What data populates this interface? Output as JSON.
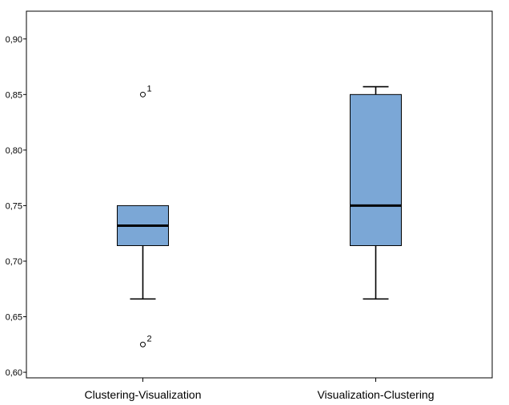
{
  "chart_data": {
    "type": "boxplot",
    "title": "",
    "xlabel": "",
    "ylabel": "",
    "ylim": [
      0.595,
      0.925
    ],
    "yticks": [
      0.6,
      0.65,
      0.7,
      0.75,
      0.8,
      0.85,
      0.9
    ],
    "ytick_labels": [
      "0,60",
      "0,65",
      "0,70",
      "0,75",
      "0,80",
      "0,85",
      "0,90"
    ],
    "grid": false,
    "categories": [
      "Clustering-Visualization",
      "Visualization-Clustering"
    ],
    "box_color": "#7ba7d6",
    "box_edge_color": "#000000",
    "boxes": [
      {
        "category": "Clustering-Visualization",
        "whisker_low": 0.666,
        "q1": 0.714,
        "median": 0.732,
        "q3": 0.75,
        "whisker_high": 0.75,
        "outliers": [
          {
            "value": 0.85,
            "label": "1"
          },
          {
            "value": 0.625,
            "label": "2"
          }
        ]
      },
      {
        "category": "Visualization-Clustering",
        "whisker_low": 0.666,
        "q1": 0.714,
        "median": 0.75,
        "q3": 0.85,
        "whisker_high": 0.857,
        "outliers": []
      }
    ]
  }
}
